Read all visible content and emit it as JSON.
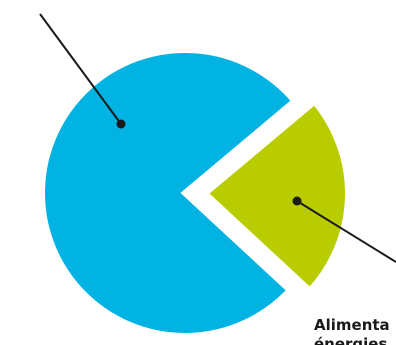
{
  "chart_data": {
    "type": "pie",
    "title": "",
    "exploded_slice_index": 1,
    "slices": [
      {
        "label": "",
        "value": 77,
        "color": "#00B3E3",
        "leader": "upper-left"
      },
      {
        "label": "Alimenta",
        "label_line2": "énergies",
        "value": 23,
        "color": "#B8CC00",
        "leader": "lower-right"
      }
    ],
    "colors": {
      "leader_line": "#1a1a1a",
      "background": "#ffffff"
    }
  }
}
